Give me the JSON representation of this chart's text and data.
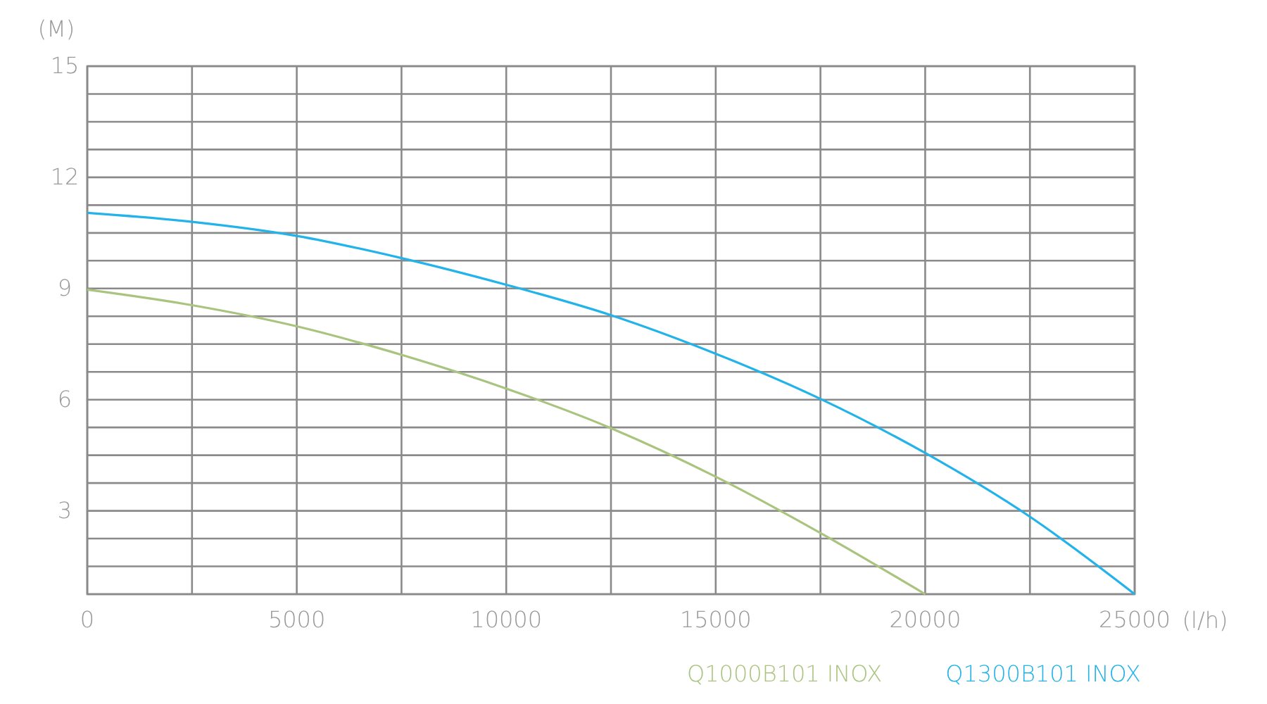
{
  "chart_data": {
    "type": "line",
    "xlabel": "(l/h)",
    "ylabel": "(M)",
    "x": [
      0,
      2500,
      5000,
      7500,
      10000,
      12500,
      15000,
      17500,
      20000,
      22500,
      25000
    ],
    "series": [
      {
        "name": "Q1000B101 INOX",
        "color": "#a9c47f",
        "values": [
          8.97,
          8.55,
          7.98,
          7.21,
          6.3,
          5.23,
          3.92,
          2.4,
          0.75,
          null,
          null
        ]
      },
      {
        "name": "Q1300B101 INOX",
        "color": "#22b3ea",
        "values": [
          11.04,
          10.8,
          10.42,
          9.82,
          9.1,
          8.28,
          7.24,
          6.02,
          4.56,
          2.84,
          0.75
        ]
      }
    ],
    "xlim": [
      0,
      25000
    ],
    "ylim": [
      0.75,
      15
    ],
    "xticks": [
      0,
      {
        "value": 2500,
        "label": null
      },
      5000,
      {
        "value": 7500,
        "label": null
      },
      10000,
      {
        "value": 12500,
        "label": null
      },
      15000,
      {
        "value": 17500,
        "label": null
      },
      20000,
      {
        "value": 22500,
        "label": null
      },
      25000
    ],
    "yticks": [
      {
        "value": 0.75,
        "label": null
      },
      {
        "value": 1.5,
        "label": null
      },
      {
        "value": 2.25,
        "label": null
      },
      3,
      {
        "value": 3.75,
        "label": null
      },
      {
        "value": 4.5,
        "label": null
      },
      {
        "value": 5.25,
        "label": null
      },
      6,
      {
        "value": 6.75,
        "label": null
      },
      {
        "value": 7.5,
        "label": null
      },
      {
        "value": 8.25,
        "label": null
      },
      9,
      {
        "value": 9.75,
        "label": null
      },
      {
        "value": 10.5,
        "label": null
      },
      {
        "value": 11.25,
        "label": null
      },
      12,
      {
        "value": 12.75,
        "label": null
      },
      {
        "value": 13.5,
        "label": null
      },
      {
        "value": 14.25,
        "label": null
      },
      15
    ],
    "grid": true,
    "legend": "bottom right",
    "marker": "none",
    "line_style": "solid"
  }
}
